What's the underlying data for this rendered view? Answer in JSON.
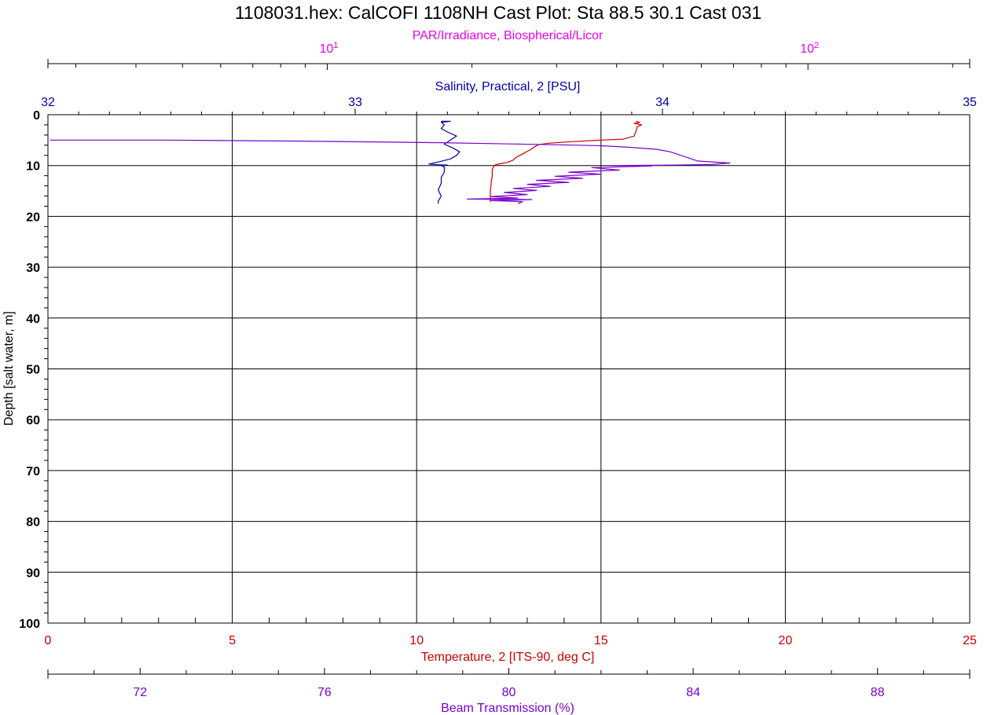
{
  "chart_data": {
    "type": "line",
    "title": "1108031.hex: CalCOFI 1108NH Cast Plot: Sta 88.5 30.1 Cast 031",
    "grid": true,
    "y_axis": {
      "label": "Depth [salt water, m]",
      "range": [
        0,
        100
      ],
      "inverted": true,
      "ticks": [
        "0",
        "10",
        "20",
        "30",
        "40",
        "50",
        "60",
        "70",
        "80",
        "90",
        "100"
      ]
    },
    "axes": {
      "par": {
        "label": "PAR/Irradiance, Biospherical/Licor",
        "scale": "log",
        "range": [
          2.624,
          217
        ],
        "ticks": [
          {
            "base": "10",
            "exp": "1",
            "value": 10
          },
          {
            "base": "10",
            "exp": "2",
            "value": 100
          }
        ],
        "color": "#ee00ee"
      },
      "salinity": {
        "label": "Salinity, Practical, 2 [PSU]",
        "range": [
          32,
          35
        ],
        "ticks": [
          "32",
          "33",
          "34",
          "35"
        ],
        "color": "#0000a8"
      },
      "temperature": {
        "label": "Temperature, 2 [ITS-90, deg C]",
        "range": [
          0,
          25
        ],
        "ticks": [
          "0",
          "5",
          "10",
          "15",
          "20",
          "25"
        ],
        "color": "#cc0000"
      },
      "beam": {
        "label": "Beam Transmission (%)",
        "range": [
          70,
          90
        ],
        "ticks": [
          "72",
          "76",
          "80",
          "84",
          "88"
        ],
        "color": "#7a00cc"
      }
    },
    "series": [
      {
        "axis": "temperature",
        "color": "#cc0000",
        "points": [
          [
            15.95,
            1.3
          ],
          [
            16.05,
            1.5
          ],
          [
            15.9,
            1.7
          ],
          [
            16.1,
            2.0
          ],
          [
            15.98,
            2.4
          ],
          [
            15.95,
            3.2
          ],
          [
            15.9,
            4.2
          ],
          [
            15.6,
            4.8
          ],
          [
            15.0,
            5.0
          ],
          [
            14.2,
            5.3
          ],
          [
            13.6,
            5.6
          ],
          [
            13.3,
            5.9
          ],
          [
            13.2,
            6.3
          ],
          [
            13.1,
            6.8
          ],
          [
            12.9,
            7.6
          ],
          [
            12.7,
            8.4
          ],
          [
            12.6,
            9.0
          ],
          [
            12.45,
            9.4
          ],
          [
            12.3,
            9.6
          ],
          [
            12.15,
            9.8
          ],
          [
            12.1,
            10.1
          ],
          [
            12.05,
            10.8
          ],
          [
            12.05,
            12.0
          ],
          [
            12.02,
            13.5
          ],
          [
            12.0,
            15.0
          ],
          [
            12.0,
            16.4
          ],
          [
            12.0,
            17.2
          ]
        ]
      },
      {
        "axis": "salinity",
        "color": "#0000a8",
        "points": [
          [
            33.28,
            1.3
          ],
          [
            33.31,
            1.3
          ],
          [
            33.28,
            1.5
          ],
          [
            33.29,
            2.0
          ],
          [
            33.28,
            2.7
          ],
          [
            33.3,
            3.4
          ],
          [
            33.33,
            4.2
          ],
          [
            33.31,
            5.0
          ],
          [
            33.29,
            5.8
          ],
          [
            33.32,
            6.6
          ],
          [
            33.34,
            7.3
          ],
          [
            33.33,
            8.0
          ],
          [
            33.31,
            8.7
          ],
          [
            33.27,
            9.3
          ],
          [
            33.24,
            9.7
          ],
          [
            33.27,
            9.85
          ],
          [
            33.3,
            9.9
          ],
          [
            33.28,
            10.0
          ],
          [
            33.29,
            10.3
          ],
          [
            33.29,
            11.3
          ],
          [
            33.28,
            12.3
          ],
          [
            33.28,
            13.5
          ],
          [
            33.27,
            14.8
          ],
          [
            33.28,
            16.0
          ],
          [
            33.27,
            17.0
          ],
          [
            33.27,
            17.5
          ]
        ]
      },
      {
        "axis": "beam",
        "color": "#7a00cc",
        "points": [
          [
            70.05,
            5.0
          ],
          [
            72.5,
            5.0
          ],
          [
            75.5,
            5.2
          ],
          [
            78.5,
            5.5
          ],
          [
            81.0,
            5.9
          ],
          [
            82.0,
            6.1
          ],
          [
            82.6,
            6.4
          ],
          [
            83.2,
            6.8
          ],
          [
            83.5,
            7.3
          ],
          [
            83.8,
            8.2
          ],
          [
            84.1,
            9.1
          ],
          [
            84.8,
            9.5
          ],
          [
            84.4,
            9.8
          ],
          [
            83.6,
            9.9
          ],
          [
            82.2,
            10.0
          ],
          [
            83.1,
            10.1
          ],
          [
            81.8,
            10.4
          ],
          [
            82.4,
            10.9
          ],
          [
            81.3,
            11.3
          ],
          [
            82.0,
            11.7
          ],
          [
            81.0,
            12.1
          ],
          [
            81.6,
            12.5
          ],
          [
            80.6,
            12.9
          ],
          [
            81.3,
            13.3
          ],
          [
            80.4,
            13.7
          ],
          [
            80.9,
            14.1
          ],
          [
            80.1,
            14.5
          ],
          [
            80.6,
            14.9
          ],
          [
            79.9,
            15.3
          ],
          [
            80.4,
            15.7
          ],
          [
            79.6,
            16.1
          ],
          [
            80.2,
            16.4
          ],
          [
            79.1,
            16.6
          ],
          [
            80.5,
            16.7
          ],
          [
            79.6,
            16.9
          ],
          [
            80.3,
            17.1
          ],
          [
            80.2,
            17.5
          ]
        ]
      }
    ]
  }
}
